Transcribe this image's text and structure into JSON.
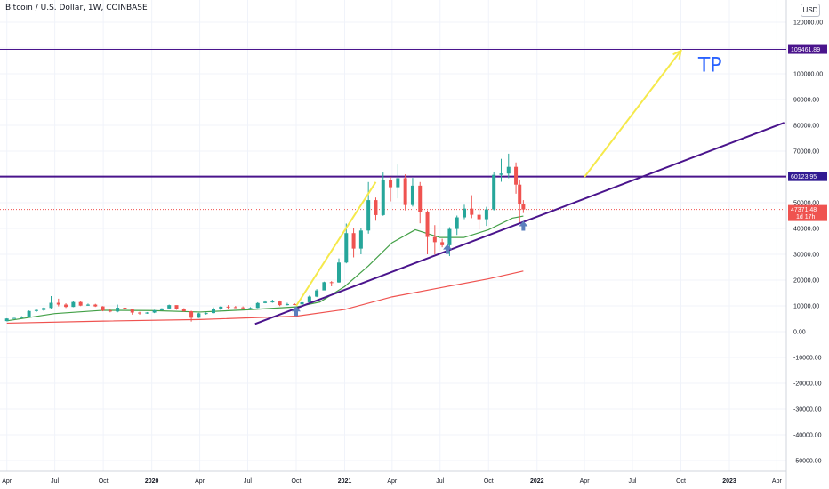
{
  "header": {
    "title": "Bitcoin / U.S. Dollar, 1W, COINBASE",
    "currency_button": "USD"
  },
  "chart_data": {
    "type": "candlestick",
    "y_ticks": [
      "120000.00",
      "110000.00",
      "100000.00",
      "90000.00",
      "80000.00",
      "70000.00",
      "60000.00",
      "50000.00",
      "40000.00",
      "30000.00",
      "20000.00",
      "10000.00",
      "0.00",
      "-10000.00",
      "-20000.00",
      "-30000.00",
      "-40000.00",
      "-50000.00"
    ],
    "y_tick_values": [
      120000,
      110000,
      100000,
      90000,
      80000,
      70000,
      60000,
      50000,
      40000,
      30000,
      20000,
      10000,
      0,
      -10000,
      -20000,
      -30000,
      -40000,
      -50000
    ],
    "x_ticks": [
      "Apr",
      "Jul",
      "Oct",
      "2020",
      "Apr",
      "Jul",
      "Oct",
      "2021",
      "Apr",
      "Jul",
      "Oct",
      "2022",
      "Apr",
      "Jul",
      "Oct",
      "2023",
      "Apr"
    ],
    "x_tick_dates": [
      "2019-04-01",
      "2019-07-01",
      "2019-10-01",
      "2020-01-01",
      "2020-04-01",
      "2020-07-01",
      "2020-10-01",
      "2021-01-01",
      "2021-04-01",
      "2021-07-01",
      "2021-10-01",
      "2022-01-01",
      "2022-04-01",
      "2022-07-01",
      "2022-10-01",
      "2023-01-01",
      "2023-04-01"
    ],
    "ylim": [
      -55000,
      125000
    ],
    "price_tags": [
      {
        "label": "109461.89",
        "value": 109461.89,
        "color": "#4a148c"
      },
      {
        "label": "60123.95",
        "value": 60123.95,
        "color": "#311b92"
      },
      {
        "label": "47371.48",
        "value": 47371.48,
        "color": "#ef5350",
        "sub": "1d 17h"
      }
    ],
    "horizontal_levels": [
      {
        "value": 109461.89,
        "color": "#4a148c"
      },
      {
        "value": 60123.95,
        "color": "#4a148c"
      },
      {
        "value": 47371.48,
        "color": "#ef5350"
      }
    ],
    "trendline": {
      "from": [
        "2020-07-15",
        3000
      ],
      "to": [
        "2023-04-15",
        81000
      ],
      "color": "#4a148c"
    },
    "arrows": [
      {
        "from": [
          "2020-10-01",
          10000
        ],
        "to": [
          "2021-03-01",
          58000
        ],
        "color": "#f5e94b"
      },
      {
        "from": [
          "2022-04-01",
          60000
        ],
        "to": [
          "2022-10-01",
          109000
        ],
        "color": "#f5e94b"
      }
    ],
    "annotation": {
      "text": "TP",
      "date": "2022-10-10",
      "value": 103000,
      "color": "#2962ff"
    },
    "up_markers": [
      {
        "date": "2020-10-01",
        "value": 7500
      },
      {
        "date": "2021-07-15",
        "value": 31500
      },
      {
        "date": "2021-12-06",
        "value": 40500
      }
    ],
    "candles": [
      [
        "2019-04-01",
        4100,
        5200,
        4000,
        5100
      ],
      [
        "2019-04-15",
        5100,
        5400,
        5000,
        5300
      ],
      [
        "2019-04-29",
        5300,
        6000,
        5200,
        5800
      ],
      [
        "2019-05-13",
        5800,
        8200,
        5700,
        8000
      ],
      [
        "2019-05-27",
        8000,
        8800,
        7600,
        8400
      ],
      [
        "2019-06-10",
        8400,
        9400,
        8000,
        9200
      ],
      [
        "2019-06-24",
        9200,
        13800,
        9000,
        11200
      ],
      [
        "2019-07-08",
        11200,
        12800,
        9800,
        10500
      ],
      [
        "2019-07-22",
        10500,
        11000,
        9200,
        9600
      ],
      [
        "2019-08-05",
        9600,
        12000,
        9500,
        11500
      ],
      [
        "2019-08-19",
        11500,
        11800,
        9900,
        10100
      ],
      [
        "2019-09-02",
        10100,
        10900,
        10000,
        10500
      ],
      [
        "2019-09-16",
        10500,
        10800,
        9600,
        9800
      ],
      [
        "2019-09-30",
        9800,
        9900,
        7900,
        8200
      ],
      [
        "2019-10-14",
        8200,
        8700,
        7500,
        7800
      ],
      [
        "2019-10-28",
        7800,
        10500,
        7500,
        9300
      ],
      [
        "2019-11-11",
        9300,
        9400,
        8400,
        8700
      ],
      [
        "2019-11-25",
        8700,
        8900,
        6600,
        7400
      ],
      [
        "2019-12-09",
        7400,
        7700,
        6600,
        7200
      ],
      [
        "2019-12-23",
        7200,
        7600,
        6900,
        7400
      ],
      [
        "2020-01-06",
        7400,
        8500,
        7200,
        8300
      ],
      [
        "2020-01-20",
        8300,
        9100,
        8200,
        9000
      ],
      [
        "2020-02-03",
        9000,
        10500,
        8900,
        10300
      ],
      [
        "2020-02-17",
        10300,
        10200,
        8500,
        8700
      ],
      [
        "2020-03-02",
        8700,
        9100,
        7700,
        7900
      ],
      [
        "2020-03-16",
        7900,
        8100,
        3900,
        5400
      ],
      [
        "2020-03-30",
        5400,
        7300,
        5300,
        7100
      ],
      [
        "2020-04-13",
        7100,
        7500,
        6600,
        7200
      ],
      [
        "2020-04-27",
        7200,
        9400,
        7100,
        8900
      ],
      [
        "2020-05-11",
        8900,
        10000,
        8100,
        9700
      ],
      [
        "2020-05-25",
        9700,
        10300,
        8600,
        9500
      ],
      [
        "2020-06-08",
        9500,
        10000,
        9100,
        9400
      ],
      [
        "2020-06-22",
        9400,
        9800,
        8800,
        9100
      ],
      [
        "2020-07-06",
        9100,
        9500,
        8900,
        9200
      ],
      [
        "2020-07-20",
        9200,
        11400,
        9100,
        11100
      ],
      [
        "2020-08-03",
        11100,
        12100,
        11000,
        11600
      ],
      [
        "2020-08-17",
        11600,
        12400,
        11200,
        11700
      ],
      [
        "2020-08-31",
        11700,
        12100,
        9900,
        10300
      ],
      [
        "2020-09-14",
        10300,
        11200,
        10200,
        10700
      ],
      [
        "2020-09-28",
        10700,
        11000,
        10300,
        10600
      ],
      [
        "2020-10-12",
        10600,
        11800,
        10500,
        11400
      ],
      [
        "2020-10-26",
        11400,
        14000,
        11300,
        13600
      ],
      [
        "2020-11-09",
        13600,
        16500,
        13400,
        16000
      ],
      [
        "2020-11-23",
        16000,
        19400,
        16200,
        19200
      ],
      [
        "2020-12-07",
        19200,
        19600,
        17600,
        19100
      ],
      [
        "2020-12-21",
        19100,
        28400,
        19000,
        26800
      ],
      [
        "2021-01-04",
        26800,
        41900,
        26500,
        38200
      ],
      [
        "2021-01-18",
        38200,
        40000,
        28800,
        32200
      ],
      [
        "2021-02-01",
        32200,
        40000,
        30000,
        39200
      ],
      [
        "2021-02-15",
        39200,
        58000,
        38000,
        51000
      ],
      [
        "2021-03-01",
        51000,
        52000,
        43000,
        45200
      ],
      [
        "2021-03-15",
        45200,
        61700,
        44900,
        58900
      ],
      [
        "2021-03-29",
        58900,
        60000,
        50500,
        56000
      ],
      [
        "2021-04-12",
        56000,
        64800,
        51700,
        59500
      ],
      [
        "2021-04-26",
        59500,
        61000,
        47000,
        49100
      ],
      [
        "2021-05-10",
        49100,
        59600,
        48500,
        56600
      ],
      [
        "2021-05-24",
        56600,
        58000,
        42000,
        46400
      ],
      [
        "2021-06-07",
        46400,
        47000,
        30000,
        36700
      ],
      [
        "2021-06-21",
        36700,
        41300,
        30000,
        34700
      ],
      [
        "2021-07-05",
        34700,
        36000,
        32700,
        33500
      ],
      [
        "2021-07-19",
        33500,
        40500,
        29300,
        39800
      ],
      [
        "2021-08-02",
        39800,
        45000,
        37500,
        44300
      ],
      [
        "2021-08-16",
        44300,
        49200,
        43600,
        47700
      ],
      [
        "2021-08-30",
        47700,
        52900,
        44000,
        45300
      ],
      [
        "2021-09-13",
        45300,
        48400,
        39600,
        43600
      ],
      [
        "2021-09-27",
        43600,
        48400,
        41000,
        47400
      ],
      [
        "2021-10-11",
        47400,
        62000,
        47000,
        60800
      ],
      [
        "2021-10-25",
        60800,
        67000,
        58100,
        61300
      ],
      [
        "2021-11-08",
        61300,
        69000,
        59500,
        63900
      ],
      [
        "2021-11-22",
        63900,
        65600,
        53500,
        57000
      ],
      [
        "2021-11-29",
        57000,
        59000,
        42000,
        49300
      ],
      [
        "2021-12-06",
        49300,
        51000,
        46000,
        47371
      ]
    ],
    "ma_green": [
      [
        "2019-04-01",
        4200
      ],
      [
        "2019-07-01",
        7000
      ],
      [
        "2019-10-01",
        8300
      ],
      [
        "2020-01-01",
        8200
      ],
      [
        "2020-04-01",
        7600
      ],
      [
        "2020-07-01",
        8500
      ],
      [
        "2020-10-01",
        9600
      ],
      [
        "2020-11-15",
        11500
      ],
      [
        "2021-01-01",
        17500
      ],
      [
        "2021-02-15",
        25500
      ],
      [
        "2021-04-01",
        34500
      ],
      [
        "2021-05-15",
        39500
      ],
      [
        "2021-07-01",
        36500
      ],
      [
        "2021-08-15",
        36500
      ],
      [
        "2021-10-01",
        39500
      ],
      [
        "2021-11-15",
        44000
      ],
      [
        "2021-12-06",
        44800
      ]
    ],
    "ma_red": [
      [
        "2019-04-01",
        3300
      ],
      [
        "2019-10-01",
        4100
      ],
      [
        "2020-04-01",
        4700
      ],
      [
        "2020-10-01",
        6000
      ],
      [
        "2021-01-01",
        8600
      ],
      [
        "2021-04-01",
        13500
      ],
      [
        "2021-07-01",
        17000
      ],
      [
        "2021-10-01",
        20500
      ],
      [
        "2021-12-06",
        23500
      ]
    ]
  },
  "colors": {
    "up": "#26a69a",
    "down": "#ef5350",
    "ma_green": "#43a047",
    "ma_red": "#ef5350",
    "grid": "#f0f3fa"
  }
}
